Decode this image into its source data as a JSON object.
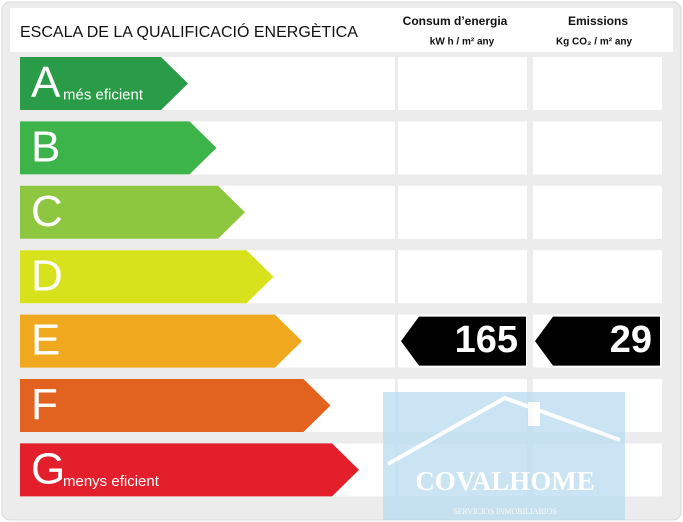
{
  "header": {
    "title": "ESCALA DE LA QUALIFICACIÓ ENERGÈTICA"
  },
  "columns": [
    {
      "title": "Consum d’energia",
      "unit": "kW h / m² any"
    },
    {
      "title": "Emissions",
      "unit": "Kg CO₂ / m² any"
    }
  ],
  "rows": [
    {
      "letter": "A",
      "note": "més eficient",
      "color": "#2a9b46"
    },
    {
      "letter": "B",
      "color": "#3cb44a"
    },
    {
      "letter": "C",
      "color": "#8dc63f"
    },
    {
      "letter": "D",
      "color": "#d8e21c"
    },
    {
      "letter": "E",
      "color": "#f0a91f",
      "consumption": 165,
      "emissions": 29
    },
    {
      "letter": "F",
      "color": "#e2631f"
    },
    {
      "letter": "G",
      "note": "menys eficient",
      "color": "#e21f2b"
    }
  ],
  "watermark": {
    "name": "COVALHOME",
    "tagline": "SERVICIOS INMOBILIARIOS"
  }
}
